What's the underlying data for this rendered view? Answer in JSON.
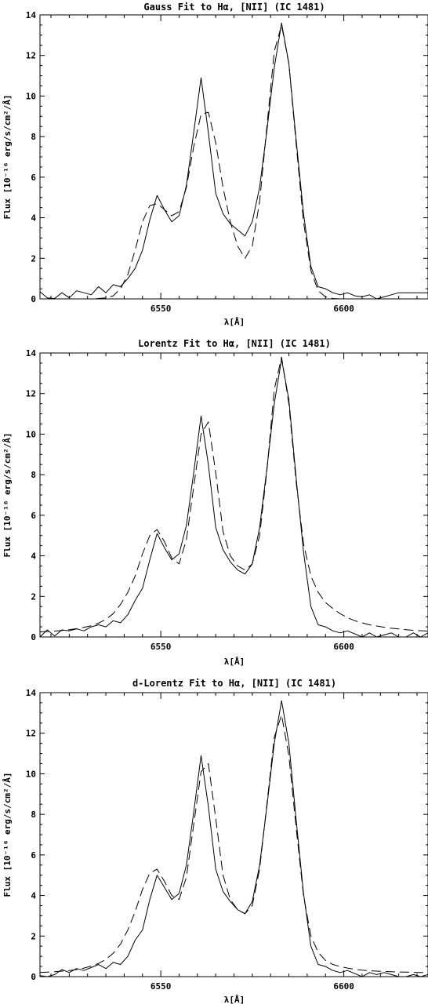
{
  "chart_data": [
    {
      "type": "line",
      "title": "Gauss Fit to Hα, [NII] (IC 1481)",
      "xlabel": "λ[Å]",
      "ylabel": "Flux [10⁻¹⁶ erg/s/cm²/Å]",
      "xlim": [
        6517,
        6623
      ],
      "ylim": [
        0,
        14
      ],
      "xticks": [
        "6550",
        "6600"
      ],
      "yticks": [
        "0",
        "2",
        "4",
        "6",
        "8",
        "10",
        "12",
        "14"
      ],
      "grid": false,
      "series": [
        {
          "style": "solid",
          "x": [
            6517,
            6519,
            6521,
            6523,
            6525,
            6527,
            6529,
            6531,
            6533,
            6535,
            6537,
            6539,
            6541,
            6543,
            6545,
            6547,
            6549,
            6551,
            6553,
            6555,
            6557,
            6559,
            6561,
            6563,
            6565,
            6567,
            6569,
            6571,
            6573,
            6575,
            6577,
            6579,
            6581,
            6583,
            6585,
            6587,
            6589,
            6591,
            6593,
            6595,
            6597,
            6599,
            6601,
            6603,
            6605,
            6607,
            6609,
            6611,
            6613,
            6615,
            6617,
            6619,
            6621,
            6623
          ],
          "values": [
            0.35,
            0.05,
            0.02,
            0.3,
            0.05,
            0.4,
            0.3,
            0.2,
            0.6,
            0.3,
            0.7,
            0.6,
            1.0,
            1.5,
            2.4,
            3.9,
            5.1,
            4.4,
            3.8,
            4.1,
            5.6,
            8.2,
            10.9,
            8.2,
            5.2,
            4.2,
            3.7,
            3.4,
            3.1,
            3.8,
            5.5,
            8.3,
            11.4,
            13.6,
            11.6,
            7.8,
            4.2,
            1.6,
            0.6,
            0.5,
            0.3,
            0.2,
            0.3,
            0.15,
            0.1,
            0.2,
            0.0,
            0.1,
            0.2,
            0.3,
            0.3,
            0.3,
            0.3,
            0.3
          ]
        },
        {
          "style": "dashed",
          "x": [
            6517,
            6519,
            6521,
            6523,
            6525,
            6527,
            6529,
            6531,
            6533,
            6535,
            6537,
            6539,
            6541,
            6543,
            6545,
            6547,
            6549,
            6551,
            6553,
            6555,
            6557,
            6559,
            6561,
            6563,
            6565,
            6567,
            6569,
            6571,
            6573,
            6575,
            6577,
            6579,
            6581,
            6583,
            6585,
            6587,
            6589,
            6591,
            6593,
            6595,
            6597,
            6599,
            6601,
            6603,
            6605,
            6607,
            6609,
            6611,
            6613,
            6615,
            6617,
            6619,
            6621,
            6623
          ],
          "values": [
            0.0,
            0.0,
            0.0,
            0.0,
            0.0,
            0.0,
            0.0,
            0.0,
            0.02,
            0.05,
            0.15,
            0.5,
            1.2,
            2.4,
            3.8,
            4.6,
            4.7,
            4.4,
            4.1,
            4.3,
            5.5,
            7.5,
            9.1,
            9.2,
            7.7,
            5.5,
            3.8,
            2.6,
            2.0,
            2.6,
            4.8,
            8.5,
            12.2,
            13.5,
            11.6,
            7.6,
            3.8,
            1.4,
            0.4,
            0.1,
            0.02,
            0.0,
            0.0,
            0.0,
            0.0,
            0.0,
            0.0,
            0.0,
            0.0,
            0.0,
            0.0,
            0.0,
            0.0,
            0.0
          ]
        }
      ]
    },
    {
      "type": "line",
      "title": "Lorentz Fit to Hα, [NII] (IC 1481)",
      "xlabel": "λ[Å]",
      "ylabel": "Flux [10⁻¹⁶ erg/s/cm²/Å]",
      "xlim": [
        6517,
        6623
      ],
      "ylim": [
        0,
        14
      ],
      "xticks": [
        "6550",
        "6600"
      ],
      "yticks": [
        "0",
        "2",
        "4",
        "6",
        "8",
        "10",
        "12",
        "14"
      ],
      "grid": false,
      "series": [
        {
          "style": "solid",
          "x": [
            6517,
            6519,
            6521,
            6523,
            6525,
            6527,
            6529,
            6531,
            6533,
            6535,
            6537,
            6539,
            6541,
            6543,
            6545,
            6547,
            6549,
            6551,
            6553,
            6555,
            6557,
            6559,
            6561,
            6563,
            6565,
            6567,
            6569,
            6571,
            6573,
            6575,
            6577,
            6579,
            6581,
            6583,
            6585,
            6587,
            6589,
            6591,
            6593,
            6595,
            6597,
            6599,
            6601,
            6603,
            6605,
            6607,
            6609,
            6611,
            6613,
            6615,
            6617,
            6619,
            6621,
            6623
          ],
          "values": [
            0.0,
            0.35,
            0.05,
            0.35,
            0.3,
            0.4,
            0.3,
            0.5,
            0.6,
            0.5,
            0.8,
            0.7,
            1.1,
            1.8,
            2.4,
            3.8,
            5.1,
            4.4,
            3.8,
            4.1,
            5.5,
            8.1,
            10.9,
            8.5,
            5.4,
            4.3,
            3.7,
            3.3,
            3.1,
            3.6,
            5.4,
            8.3,
            11.5,
            13.7,
            11.7,
            7.8,
            4.2,
            1.5,
            0.6,
            0.5,
            0.3,
            0.2,
            0.3,
            0.15,
            0.0,
            0.2,
            0.0,
            0.1,
            0.2,
            0.0,
            0.0,
            0.2,
            0.0,
            0.2
          ]
        },
        {
          "style": "dashed",
          "x": [
            6517,
            6519,
            6521,
            6523,
            6525,
            6527,
            6529,
            6531,
            6533,
            6535,
            6537,
            6539,
            6541,
            6543,
            6545,
            6547,
            6549,
            6551,
            6553,
            6555,
            6557,
            6559,
            6561,
            6563,
            6565,
            6567,
            6569,
            6571,
            6573,
            6575,
            6577,
            6579,
            6581,
            6583,
            6585,
            6587,
            6589,
            6591,
            6593,
            6595,
            6597,
            6599,
            6601,
            6603,
            6605,
            6607,
            6609,
            6611,
            6613,
            6615,
            6617,
            6619,
            6621,
            6623
          ],
          "values": [
            0.25,
            0.27,
            0.29,
            0.32,
            0.36,
            0.41,
            0.47,
            0.55,
            0.68,
            0.87,
            1.15,
            1.6,
            2.2,
            3.0,
            4.1,
            5.0,
            5.3,
            4.7,
            3.9,
            3.6,
            4.8,
            7.4,
            10.0,
            10.6,
            8.1,
            5.2,
            4.0,
            3.5,
            3.3,
            3.6,
            5.0,
            8.2,
            12.2,
            13.8,
            11.5,
            7.6,
            4.6,
            3.0,
            2.2,
            1.7,
            1.4,
            1.15,
            0.95,
            0.8,
            0.7,
            0.6,
            0.54,
            0.48,
            0.43,
            0.4,
            0.36,
            0.33,
            0.31,
            0.29
          ]
        }
      ]
    },
    {
      "type": "line",
      "title": "d-Lorentz Fit to Hα, [NII] (IC 1481)",
      "xlabel": "λ[Å]",
      "ylabel": "Flux [10⁻¹⁶ erg/s/cm²/Å]",
      "xlim": [
        6517,
        6623
      ],
      "ylim": [
        0,
        14
      ],
      "xticks": [
        "6550",
        "6600"
      ],
      "yticks": [
        "0",
        "2",
        "4",
        "6",
        "8",
        "10",
        "12",
        "14"
      ],
      "grid": false,
      "series": [
        {
          "style": "solid",
          "x": [
            6517,
            6519,
            6521,
            6523,
            6525,
            6527,
            6529,
            6531,
            6533,
            6535,
            6537,
            6539,
            6541,
            6543,
            6545,
            6547,
            6549,
            6551,
            6553,
            6555,
            6557,
            6559,
            6561,
            6563,
            6565,
            6567,
            6569,
            6571,
            6573,
            6575,
            6577,
            6579,
            6581,
            6583,
            6585,
            6587,
            6589,
            6591,
            6593,
            6595,
            6597,
            6599,
            6601,
            6603,
            6605,
            6607,
            6609,
            6611,
            6613,
            6615,
            6617,
            6619,
            6621,
            6623
          ],
          "values": [
            0.05,
            0.0,
            0.1,
            0.35,
            0.2,
            0.4,
            0.3,
            0.45,
            0.6,
            0.4,
            0.7,
            0.6,
            1.0,
            1.8,
            2.3,
            3.8,
            5.0,
            4.4,
            3.8,
            4.1,
            5.5,
            8.1,
            10.9,
            8.4,
            5.3,
            4.2,
            3.7,
            3.3,
            3.1,
            3.7,
            5.5,
            8.4,
            11.5,
            13.6,
            11.5,
            7.7,
            4.1,
            1.5,
            0.6,
            0.5,
            0.3,
            0.2,
            0.3,
            0.15,
            0.0,
            0.2,
            0.1,
            0.2,
            0.1,
            0.0,
            0.0,
            0.1,
            0.0,
            0.1
          ]
        },
        {
          "style": "dashed",
          "x": [
            6517,
            6519,
            6521,
            6523,
            6525,
            6527,
            6529,
            6531,
            6533,
            6535,
            6537,
            6539,
            6541,
            6543,
            6545,
            6547,
            6549,
            6551,
            6553,
            6555,
            6557,
            6559,
            6561,
            6563,
            6565,
            6567,
            6569,
            6571,
            6573,
            6575,
            6577,
            6579,
            6581,
            6583,
            6585,
            6587,
            6589,
            6591,
            6593,
            6595,
            6597,
            6599,
            6601,
            6603,
            6605,
            6607,
            6609,
            6611,
            6613,
            6615,
            6617,
            6619,
            6621,
            6623
          ],
          "values": [
            0.2,
            0.22,
            0.24,
            0.27,
            0.3,
            0.35,
            0.42,
            0.52,
            0.65,
            0.85,
            1.15,
            1.6,
            2.3,
            3.2,
            4.3,
            5.1,
            5.3,
            4.7,
            4.0,
            3.8,
            4.9,
            7.5,
            10.1,
            10.5,
            7.8,
            5.0,
            3.8,
            3.3,
            3.1,
            3.5,
            5.3,
            8.5,
            11.8,
            12.9,
            10.9,
            7.3,
            4.0,
            2.0,
            1.2,
            0.8,
            0.6,
            0.5,
            0.42,
            0.36,
            0.32,
            0.29,
            0.27,
            0.25,
            0.24,
            0.23,
            0.22,
            0.21,
            0.2,
            0.2
          ]
        }
      ]
    }
  ]
}
